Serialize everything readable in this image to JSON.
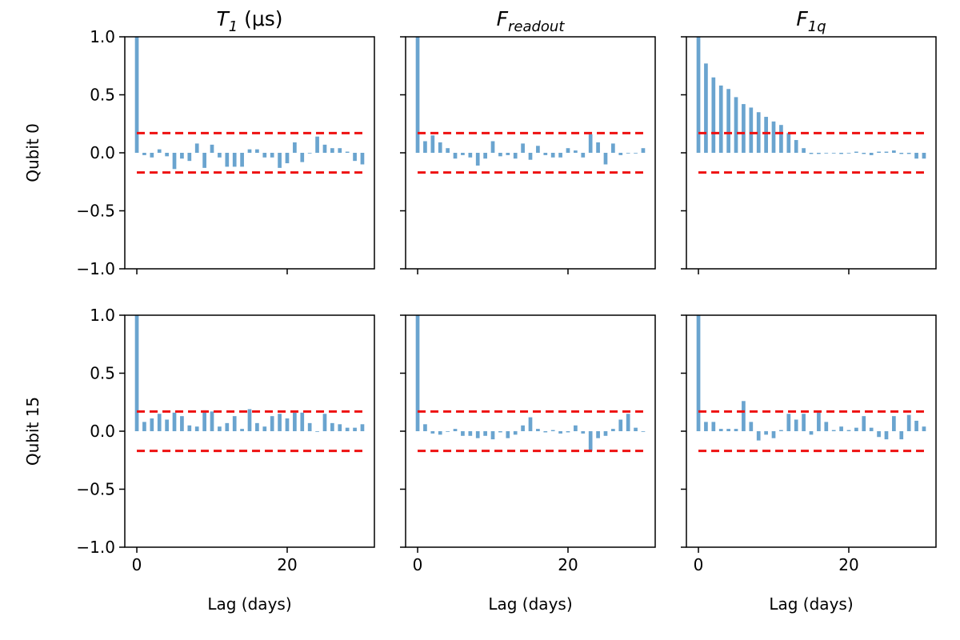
{
  "chart_data": {
    "type": "bar",
    "layout": "2x3 grid of autocorrelation plots",
    "colors": {
      "bar": "#6aa4cf",
      "confidence": "#ee1111",
      "axis": "#000000"
    },
    "columns": [
      {
        "title_main": "T",
        "title_sub": "1",
        "title_rest": " (μs)"
      },
      {
        "title_main": "F",
        "title_sub": "readout",
        "title_rest": ""
      },
      {
        "title_main": "F",
        "title_sub": "1q",
        "title_rest": ""
      }
    ],
    "rows": [
      {
        "ylabel": "Qubit 0"
      },
      {
        "ylabel": "Qubit 15"
      }
    ],
    "xlabel": "Lag (days)",
    "xlim": [
      -1.6,
      31.6
    ],
    "ylim": [
      -1.0,
      1.0
    ],
    "x_ticks": [
      0,
      20
    ],
    "x_tick_labels": [
      "0",
      "20"
    ],
    "y_ticks": [
      1.0,
      0.5,
      0.0,
      -0.5,
      -1.0
    ],
    "y_tick_labels": [
      "1.0",
      "0.5",
      "0.0",
      "−0.5",
      "−1.0"
    ],
    "confidence_band": [
      0.17,
      -0.17
    ],
    "lags": [
      0,
      1,
      2,
      3,
      4,
      5,
      6,
      7,
      8,
      9,
      10,
      11,
      12,
      13,
      14,
      15,
      16,
      17,
      18,
      19,
      20,
      21,
      22,
      23,
      24,
      25,
      26,
      27,
      28,
      29,
      30
    ],
    "panels": [
      {
        "row": 0,
        "col": 0,
        "values": [
          1.0,
          -0.02,
          -0.04,
          0.03,
          -0.03,
          -0.14,
          -0.05,
          -0.07,
          0.08,
          -0.13,
          0.07,
          -0.04,
          -0.12,
          -0.12,
          -0.12,
          0.03,
          0.03,
          -0.04,
          -0.04,
          -0.13,
          -0.09,
          0.09,
          -0.08,
          0.0,
          0.14,
          0.07,
          0.04,
          0.04,
          0.01,
          -0.07,
          -0.1
        ]
      },
      {
        "row": 0,
        "col": 1,
        "values": [
          1.0,
          0.1,
          0.15,
          0.09,
          0.04,
          -0.05,
          -0.02,
          -0.04,
          -0.11,
          -0.05,
          0.1,
          -0.03,
          -0.02,
          -0.05,
          0.08,
          -0.06,
          0.06,
          -0.02,
          -0.04,
          -0.04,
          0.04,
          0.02,
          -0.04,
          0.16,
          0.09,
          -0.1,
          0.08,
          -0.02,
          0.0,
          0.0,
          0.04
        ]
      },
      {
        "row": 0,
        "col": 2,
        "values": [
          1.0,
          0.77,
          0.65,
          0.58,
          0.55,
          0.48,
          0.42,
          0.39,
          0.35,
          0.31,
          0.27,
          0.24,
          0.17,
          0.11,
          0.04,
          -0.01,
          -0.01,
          0.0,
          0.0,
          -0.01,
          0.0,
          0.01,
          -0.01,
          -0.02,
          0.01,
          0.01,
          0.02,
          -0.01,
          -0.01,
          -0.05,
          -0.05
        ]
      },
      {
        "row": 1,
        "col": 0,
        "values": [
          1.0,
          0.08,
          0.11,
          0.15,
          0.1,
          0.16,
          0.13,
          0.05,
          0.04,
          0.18,
          0.17,
          0.04,
          0.07,
          0.13,
          0.02,
          0.19,
          0.07,
          0.04,
          0.13,
          0.15,
          0.11,
          0.16,
          0.16,
          0.07,
          0.0,
          0.15,
          0.07,
          0.06,
          0.03,
          0.03,
          0.06
        ]
      },
      {
        "row": 1,
        "col": 1,
        "values": [
          1.0,
          0.06,
          -0.02,
          -0.03,
          0.0,
          0.02,
          -0.04,
          -0.04,
          -0.06,
          -0.04,
          -0.07,
          -0.01,
          -0.06,
          -0.03,
          0.05,
          0.12,
          0.02,
          -0.01,
          0.01,
          -0.02,
          -0.01,
          0.05,
          -0.02,
          -0.17,
          -0.06,
          -0.04,
          0.02,
          0.1,
          0.15,
          0.03,
          0.0
        ]
      },
      {
        "row": 1,
        "col": 2,
        "values": [
          1.0,
          0.08,
          0.08,
          0.02,
          0.02,
          0.02,
          0.26,
          0.08,
          -0.08,
          -0.03,
          -0.06,
          0.01,
          0.15,
          0.1,
          0.15,
          -0.03,
          0.17,
          0.08,
          0.01,
          0.04,
          0.01,
          0.03,
          0.13,
          0.03,
          -0.05,
          -0.07,
          0.13,
          -0.07,
          0.14,
          0.09,
          0.04
        ]
      }
    ]
  }
}
